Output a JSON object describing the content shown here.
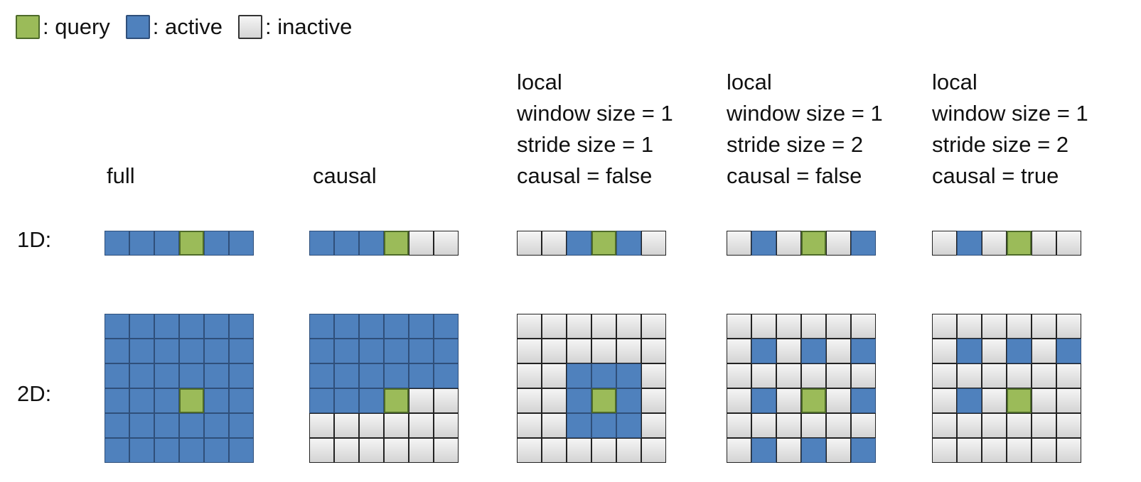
{
  "legend": {
    "query_label": ": query",
    "active_label": ": active",
    "inactive_label": ": inactive"
  },
  "colors": {
    "query": "#9bbb59",
    "active": "#4f81bd",
    "inactive": "#e6e6e6"
  },
  "row_labels": {
    "one_d": "1D:",
    "two_d": "2D:"
  },
  "panels": [
    {
      "label_lines": [
        "full"
      ],
      "grid_1d": "aaaqaa",
      "grid_2d": [
        "aaaaaa",
        "aaaaaa",
        "aaaaaa",
        "aaaqaa",
        "aaaaaa",
        "aaaaaa"
      ]
    },
    {
      "label_lines": [
        "causal"
      ],
      "grid_1d": "aaaqii",
      "grid_2d": [
        "aaaaaa",
        "aaaaaa",
        "aaaaaa",
        "aaaqii",
        "iiiiii",
        "iiiiii"
      ]
    },
    {
      "label_lines": [
        "local",
        "window size = 1",
        "stride size = 1",
        "causal = false"
      ],
      "grid_1d": "iiaqai",
      "grid_2d": [
        "iiiiii",
        "iiiiii",
        "iiaaai",
        "iiaqai",
        "iiaaai",
        "iiiiii"
      ]
    },
    {
      "label_lines": [
        "local",
        "window size = 1",
        "stride size = 2",
        "causal = false"
      ],
      "grid_1d": "iaiqia",
      "grid_2d": [
        "iiiiii",
        "iaiaia",
        "iiiiii",
        "iaiqia",
        "iiiiii",
        "iaiaia"
      ]
    },
    {
      "label_lines": [
        "local",
        "window size = 1",
        "stride size = 2",
        "causal = true"
      ],
      "grid_1d": "iaiqii",
      "grid_2d": [
        "iiiiii",
        "iaiaia",
        "iiiiii",
        "iaiqii",
        "iiiiii",
        "iiiiii"
      ]
    }
  ]
}
